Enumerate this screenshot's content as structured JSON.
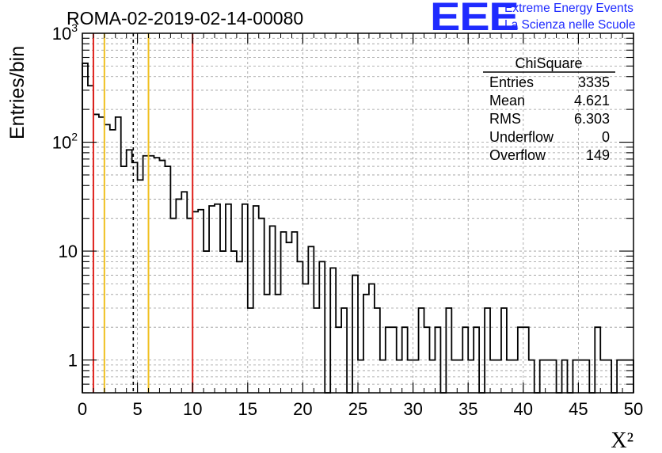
{
  "header": {
    "title": "ROMA-02-2019-02-14-00080"
  },
  "logo": {
    "mark": "EEE",
    "line1": "Extreme Energy Events",
    "line2": "La Scienza nelle Scuole",
    "color": "#1f2bff"
  },
  "stats_box": {
    "title": "ChiSquare",
    "rows": [
      {
        "label": "Entries",
        "value": "3335"
      },
      {
        "label": "Mean",
        "value": "4.621"
      },
      {
        "label": "RMS",
        "value": "6.303"
      },
      {
        "label": "Underflow",
        "value": "0"
      },
      {
        "label": "Overflow",
        "value": "149"
      }
    ]
  },
  "chart_data": {
    "type": "histogram",
    "log_y": true,
    "grid": true,
    "xlabel": "X²",
    "ylabel": "Entries/bin",
    "xlim": [
      0,
      50
    ],
    "ylim": [
      0.5,
      1000
    ],
    "x_ticks": [
      "0",
      "5",
      "10",
      "15",
      "20",
      "25",
      "30",
      "35",
      "40",
      "45",
      "50"
    ],
    "y_ticks": [
      "1",
      "10",
      "10²",
      "10³"
    ],
    "bin_width": 0.5,
    "values": [
      530,
      330,
      180,
      170,
      145,
      130,
      170,
      60,
      85,
      65,
      45,
      75,
      75,
      72,
      68,
      60,
      20,
      30,
      35,
      20,
      23,
      24,
      10,
      26,
      27,
      10,
      27,
      10,
      8,
      27,
      3,
      26,
      20,
      4,
      17,
      4,
      15,
      12,
      15,
      8,
      5,
      11,
      3,
      8,
      0,
      7,
      2,
      3,
      0,
      6,
      1,
      4,
      5,
      3,
      1,
      2,
      2,
      1,
      2,
      1,
      1,
      3,
      2,
      1,
      2,
      0,
      3,
      1,
      1,
      2,
      1,
      2,
      0,
      3,
      1,
      1,
      3,
      1,
      1,
      2,
      2,
      1,
      0,
      1,
      1,
      1,
      0,
      1,
      0,
      1,
      1,
      1,
      0,
      2,
      1,
      1,
      0,
      1,
      1,
      1
    ],
    "vertical_lines": [
      {
        "x": 1,
        "color": "#e0201b",
        "style": "solid"
      },
      {
        "x": 10,
        "color": "#e0201b",
        "style": "solid"
      },
      {
        "x": 2,
        "color": "#f0c020",
        "style": "solid"
      },
      {
        "x": 6,
        "color": "#f0c020",
        "style": "solid"
      },
      {
        "x": 4.621,
        "color": "#000000",
        "style": "dashed"
      }
    ]
  }
}
